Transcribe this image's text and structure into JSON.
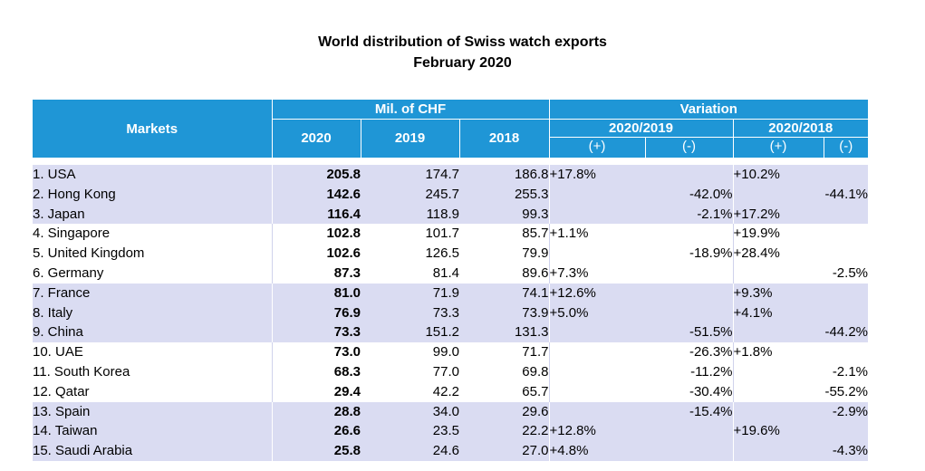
{
  "title": {
    "line1": "World distribution of Swiss watch exports",
    "line2": "February 2020"
  },
  "header": {
    "markets": "Markets",
    "mil_chf": "Mil. of CHF",
    "variation": "Variation",
    "y2020": "2020",
    "y2019": "2019",
    "y2018": "2018",
    "v2019": "2020/2019",
    "v2018": "2020/2018",
    "plus": "(+)",
    "minus": "(-)"
  },
  "rows": [
    {
      "market": "1. USA",
      "v2020": "205.8",
      "v2019": "174.7",
      "v2018": "186.8",
      "p19": "+17.8%",
      "m19": "",
      "p18": "+10.2%",
      "m18": ""
    },
    {
      "market": "2. Hong Kong",
      "v2020": "142.6",
      "v2019": "245.7",
      "v2018": "255.3",
      "p19": "",
      "m19": "-42.0%",
      "p18": "",
      "m18": "-44.1%"
    },
    {
      "market": "3. Japan",
      "v2020": "116.4",
      "v2019": "118.9",
      "v2018": "99.3",
      "p19": "",
      "m19": "-2.1%",
      "p18": "+17.2%",
      "m18": ""
    },
    {
      "market": "4. Singapore",
      "v2020": "102.8",
      "v2019": "101.7",
      "v2018": "85.7",
      "p19": "+1.1%",
      "m19": "",
      "p18": "+19.9%",
      "m18": ""
    },
    {
      "market": "5. United Kingdom",
      "v2020": "102.6",
      "v2019": "126.5",
      "v2018": "79.9",
      "p19": "",
      "m19": "-18.9%",
      "p18": "+28.4%",
      "m18": ""
    },
    {
      "market": "6. Germany",
      "v2020": "87.3",
      "v2019": "81.4",
      "v2018": "89.6",
      "p19": "+7.3%",
      "m19": "",
      "p18": "",
      "m18": "-2.5%"
    },
    {
      "market": "7. France",
      "v2020": "81.0",
      "v2019": "71.9",
      "v2018": "74.1",
      "p19": "+12.6%",
      "m19": "",
      "p18": "+9.3%",
      "m18": ""
    },
    {
      "market": "8. Italy",
      "v2020": "76.9",
      "v2019": "73.3",
      "v2018": "73.9",
      "p19": "+5.0%",
      "m19": "",
      "p18": "+4.1%",
      "m18": ""
    },
    {
      "market": "9. China",
      "v2020": "73.3",
      "v2019": "151.2",
      "v2018": "131.3",
      "p19": "",
      "m19": "-51.5%",
      "p18": "",
      "m18": "-44.2%"
    },
    {
      "market": "10. UAE",
      "v2020": "73.0",
      "v2019": "99.0",
      "v2018": "71.7",
      "p19": "",
      "m19": "-26.3%",
      "p18": "+1.8%",
      "m18": ""
    },
    {
      "market": "11. South Korea",
      "v2020": "68.3",
      "v2019": "77.0",
      "v2018": "69.8",
      "p19": "",
      "m19": "-11.2%",
      "p18": "",
      "m18": "-2.1%"
    },
    {
      "market": "12. Qatar",
      "v2020": "29.4",
      "v2019": "42.2",
      "v2018": "65.7",
      "p19": "",
      "m19": "-30.4%",
      "p18": "",
      "m18": "-55.2%"
    },
    {
      "market": "13. Spain",
      "v2020": "28.8",
      "v2019": "34.0",
      "v2018": "29.6",
      "p19": "",
      "m19": "-15.4%",
      "p18": "",
      "m18": "-2.9%"
    },
    {
      "market": "14. Taiwan",
      "v2020": "26.6",
      "v2019": "23.5",
      "v2018": "22.2",
      "p19": "+12.8%",
      "m19": "",
      "p18": "+19.6%",
      "m18": ""
    },
    {
      "market": "15. Saudi Arabia",
      "v2020": "25.8",
      "v2019": "24.6",
      "v2018": "27.0",
      "p19": "+4.8%",
      "m19": "",
      "p18": "",
      "m18": "-4.3%"
    }
  ],
  "colors": {
    "header_bg": "#1f96d6",
    "band_bg": "#dadcf2"
  }
}
